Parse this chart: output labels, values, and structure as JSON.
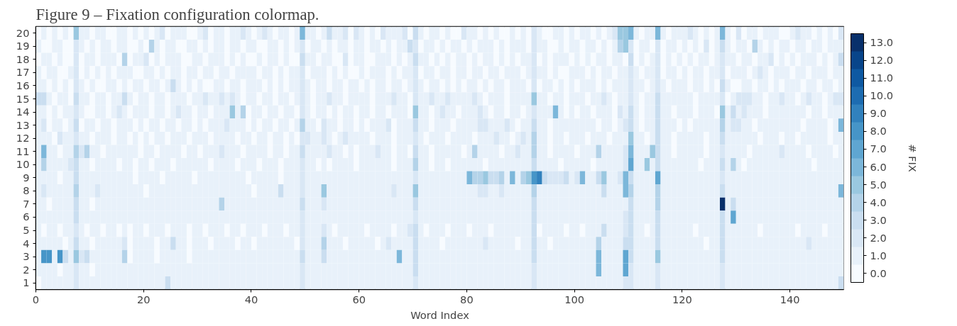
{
  "chart_data": {
    "type": "heatmap",
    "title": "Figure 9 – Fixation configuration colormap.",
    "xlabel": "Word Index",
    "clabel": "# FIX",
    "x": [
      0.5,
      1.5,
      2.5,
      3.5,
      4.5,
      5.5,
      6.5,
      7.5,
      8.5,
      9.5,
      10.5,
      11.5,
      12.5,
      13.5,
      14.5,
      15.5,
      16.5,
      17.5,
      18.5,
      19.5,
      20.5,
      21.5,
      22.5,
      23.5,
      24.5,
      25.5,
      26.5,
      27.5,
      28.5,
      29.5,
      30.5,
      31.5,
      32.5,
      33.5,
      34.5,
      35.5,
      36.5,
      37.5,
      38.5,
      39.5,
      40.5,
      41.5,
      42.5,
      43.5,
      44.5,
      45.5,
      46.5,
      47.5,
      48.5,
      49.5,
      50.5,
      51.5,
      52.5,
      53.5,
      54.5,
      55.5,
      56.5,
      57.5,
      58.5,
      59.5,
      60.5,
      61.5,
      62.5,
      63.5,
      64.5,
      65.5,
      66.5,
      67.5,
      68.5,
      69.5,
      70.5,
      71.5,
      72.5,
      73.5,
      74.5,
      75.5,
      76.5,
      77.5,
      78.5,
      79.5,
      80.5,
      81.5,
      82.5,
      83.5,
      84.5,
      85.5,
      86.5,
      87.5,
      88.5,
      89.5,
      90.5,
      91.5,
      92.5,
      93.5,
      94.5,
      95.5,
      96.5,
      97.5,
      98.5,
      99.5,
      100.5,
      101.5,
      102.5,
      103.5,
      104.5,
      105.5,
      106.5,
      107.5,
      108.5,
      109.5,
      110.5,
      111.5,
      112.5,
      113.5,
      114.5,
      115.5,
      116.5,
      117.5,
      118.5,
      119.5,
      120.5,
      121.5,
      122.5,
      123.5,
      124.5,
      125.5,
      126.5,
      127.5,
      128.5,
      129.5,
      130.5,
      131.5,
      132.5,
      133.5,
      134.5,
      135.5,
      136.5,
      137.5,
      138.5,
      139.5,
      140.5,
      141.5,
      142.5,
      143.5,
      144.5,
      145.5,
      146.5,
      147.5,
      148.5,
      149.5
    ],
    "y_categories": [
      "20",
      "19",
      "18",
      "17",
      "16",
      "15",
      "14",
      "13",
      "12",
      "11",
      "10",
      "9",
      "8",
      "7",
      "6",
      "5",
      "4",
      "3",
      "2",
      "1"
    ],
    "xlim": [
      0,
      150
    ],
    "xticks": [
      0,
      20,
      40,
      60,
      80,
      100,
      120,
      140
    ],
    "clim": [
      -0.5,
      13.5
    ],
    "cticks": [
      {
        "value": 0,
        "label": "0.0"
      },
      {
        "value": 1,
        "label": "1.0"
      },
      {
        "value": 2,
        "label": "2.0"
      },
      {
        "value": 3,
        "label": "3.0"
      },
      {
        "value": 4,
        "label": "4.0"
      },
      {
        "value": 5,
        "label": "5.0"
      },
      {
        "value": 6,
        "label": "6.0"
      },
      {
        "value": 7,
        "label": "7.0"
      },
      {
        "value": 8,
        "label": "8.0"
      },
      {
        "value": 9,
        "label": "9.0"
      },
      {
        "value": 10,
        "label": "10.0"
      },
      {
        "value": 11,
        "label": "11.0"
      },
      {
        "value": 12,
        "label": "12.0"
      },
      {
        "value": 13,
        "label": "13.0"
      }
    ],
    "cells": [
      [
        0,
        1,
        0,
        1,
        0,
        1,
        0,
        5,
        1,
        1,
        0,
        1,
        1,
        0,
        0,
        1,
        1,
        0,
        1,
        0,
        1,
        0,
        1,
        2,
        0,
        1,
        1,
        1,
        0,
        0,
        1,
        2,
        0,
        1,
        1,
        0,
        1,
        1,
        2,
        1,
        0,
        1,
        2,
        1,
        0,
        1,
        1,
        0,
        1,
        6,
        1,
        1,
        0,
        1,
        3,
        1,
        1,
        2,
        0,
        2,
        1,
        0,
        1,
        0,
        2,
        1,
        1,
        1,
        2,
        0,
        3,
        1,
        0,
        1,
        1,
        0,
        1,
        0,
        0,
        2,
        1,
        1,
        0,
        1,
        0,
        1,
        0,
        0,
        1,
        0,
        1,
        0,
        2,
        1,
        0,
        0,
        1,
        1,
        0,
        1,
        0,
        1,
        1,
        0,
        1,
        0,
        1,
        2,
        5,
        5,
        6,
        1,
        0,
        1,
        1,
        6,
        1,
        0,
        1,
        1,
        1,
        2,
        1,
        0,
        1,
        0,
        1,
        6,
        1,
        0,
        2,
        0,
        1,
        1,
        0,
        1,
        1,
        1,
        0,
        0,
        1,
        2,
        1,
        1,
        0,
        1,
        0,
        1,
        0,
        2
      ],
      [
        1,
        0,
        0,
        1,
        1,
        0,
        0,
        2,
        1,
        0,
        1,
        0,
        1,
        1,
        0,
        1,
        1,
        0,
        0,
        1,
        0,
        4,
        1,
        0,
        1,
        1,
        0,
        0,
        1,
        1,
        0,
        1,
        0,
        1,
        1,
        0,
        1,
        1,
        0,
        1,
        1,
        0,
        0,
        1,
        1,
        0,
        1,
        0,
        1,
        2,
        0,
        1,
        1,
        0,
        1,
        0,
        1,
        1,
        0,
        1,
        1,
        0,
        1,
        1,
        0,
        1,
        0,
        1,
        1,
        3,
        2,
        0,
        1,
        1,
        0,
        1,
        0,
        1,
        1,
        0,
        1,
        0,
        1,
        1,
        1,
        0,
        1,
        0,
        1,
        1,
        1,
        0,
        2,
        1,
        1,
        0,
        0,
        1,
        0,
        1,
        1,
        0,
        1,
        1,
        0,
        1,
        0,
        1,
        4,
        5,
        2,
        0,
        1,
        1,
        0,
        2,
        0,
        1,
        1,
        0,
        1,
        0,
        1,
        0,
        2,
        0,
        1,
        3,
        1,
        0,
        1,
        1,
        0,
        4,
        1,
        0,
        1,
        0,
        1,
        1,
        0,
        1,
        1,
        0,
        1,
        1,
        0,
        1,
        1,
        1
      ],
      [
        0,
        1,
        1,
        0,
        1,
        0,
        0,
        2,
        0,
        1,
        1,
        0,
        1,
        1,
        1,
        0,
        4,
        0,
        1,
        1,
        2,
        0,
        1,
        0,
        1,
        1,
        1,
        0,
        0,
        1,
        1,
        0,
        1,
        1,
        1,
        0,
        1,
        0,
        1,
        0,
        0,
        1,
        0,
        1,
        1,
        0,
        1,
        0,
        0,
        3,
        1,
        1,
        0,
        1,
        1,
        0,
        0,
        2,
        0,
        1,
        1,
        0,
        0,
        1,
        1,
        1,
        0,
        1,
        0,
        1,
        3,
        1,
        1,
        0,
        1,
        0,
        1,
        0,
        1,
        1,
        0,
        1,
        0,
        1,
        1,
        0,
        1,
        0,
        1,
        0,
        1,
        1,
        2,
        0,
        1,
        0,
        1,
        1,
        1,
        0,
        1,
        0,
        1,
        0,
        1,
        1,
        0,
        1,
        1,
        0,
        3,
        0,
        1,
        0,
        1,
        2,
        0,
        1,
        0,
        1,
        0,
        1,
        0,
        1,
        1,
        0,
        1,
        2,
        1,
        1,
        0,
        1,
        1,
        0,
        1,
        1,
        2,
        0,
        1,
        0,
        1,
        0,
        1,
        1,
        1,
        0,
        1,
        0,
        1,
        3
      ],
      [
        1,
        0,
        1,
        1,
        0,
        0,
        1,
        2,
        0,
        1,
        0,
        1,
        0,
        1,
        0,
        1,
        1,
        1,
        0,
        0,
        1,
        1,
        0,
        1,
        0,
        1,
        1,
        0,
        1,
        1,
        0,
        1,
        1,
        0,
        1,
        1,
        0,
        1,
        1,
        1,
        1,
        0,
        1,
        1,
        0,
        1,
        0,
        1,
        1,
        2,
        0,
        1,
        1,
        1,
        0,
        1,
        0,
        1,
        0,
        0,
        1,
        0,
        1,
        1,
        1,
        0,
        1,
        0,
        1,
        1,
        2,
        0,
        1,
        1,
        0,
        1,
        1,
        0,
        1,
        1,
        0,
        1,
        1,
        0,
        1,
        1,
        0,
        1,
        1,
        1,
        0,
        1,
        2,
        1,
        1,
        0,
        1,
        0,
        0,
        1,
        1,
        1,
        0,
        1,
        0,
        1,
        1,
        0,
        1,
        1,
        2,
        1,
        0,
        1,
        1,
        2,
        0,
        1,
        1,
        0,
        1,
        0,
        1,
        1,
        0,
        1,
        1,
        2,
        0,
        1,
        1,
        1,
        0,
        1,
        2,
        1,
        0,
        1,
        1,
        1,
        0,
        1,
        1,
        0,
        1,
        1,
        1,
        0,
        1,
        1
      ],
      [
        1,
        1,
        0,
        1,
        0,
        1,
        0,
        2,
        1,
        0,
        1,
        0,
        0,
        1,
        1,
        0,
        1,
        0,
        1,
        1,
        0,
        1,
        1,
        0,
        1,
        3,
        1,
        0,
        1,
        0,
        1,
        0,
        0,
        1,
        1,
        0,
        1,
        1,
        0,
        1,
        1,
        1,
        0,
        1,
        0,
        1,
        0,
        1,
        1,
        2,
        1,
        0,
        1,
        1,
        0,
        1,
        1,
        0,
        1,
        1,
        0,
        1,
        0,
        1,
        1,
        0,
        1,
        1,
        0,
        1,
        2,
        1,
        0,
        1,
        1,
        0,
        1,
        0,
        1,
        0,
        1,
        1,
        0,
        1,
        0,
        1,
        1,
        0,
        1,
        1,
        1,
        0,
        2,
        0,
        1,
        1,
        0,
        1,
        0,
        1,
        0,
        1,
        1,
        1,
        0,
        1,
        0,
        1,
        1,
        1,
        2,
        1,
        1,
        0,
        1,
        2,
        1,
        0,
        1,
        1,
        1,
        0,
        1,
        1,
        0,
        1,
        0,
        3,
        1,
        0,
        0,
        1,
        1,
        0,
        1,
        1,
        0,
        1,
        0,
        1,
        1,
        1,
        0,
        1,
        1,
        0,
        1,
        1,
        0,
        1
      ],
      [
        3,
        3,
        1,
        0,
        1,
        1,
        0,
        3,
        1,
        1,
        0,
        1,
        1,
        0,
        1,
        1,
        3,
        1,
        0,
        1,
        1,
        0,
        1,
        1,
        0,
        1,
        1,
        1,
        0,
        1,
        1,
        2,
        1,
        1,
        2,
        1,
        2,
        1,
        0,
        1,
        1,
        0,
        1,
        1,
        0,
        1,
        1,
        0,
        1,
        2,
        1,
        0,
        1,
        1,
        2,
        1,
        1,
        0,
        1,
        1,
        1,
        1,
        0,
        1,
        1,
        1,
        2,
        1,
        1,
        0,
        2,
        1,
        1,
        2,
        1,
        1,
        2,
        1,
        1,
        1,
        1,
        2,
        1,
        0,
        1,
        1,
        1,
        0,
        1,
        1,
        1,
        1,
        5,
        1,
        1,
        0,
        1,
        1,
        0,
        1,
        1,
        1,
        0,
        1,
        1,
        2,
        1,
        0,
        1,
        1,
        2,
        1,
        0,
        1,
        1,
        3,
        1,
        1,
        1,
        1,
        1,
        1,
        0,
        1,
        1,
        1,
        1,
        2,
        0,
        1,
        2,
        2,
        2,
        1,
        1,
        0,
        1,
        1,
        2,
        1,
        1,
        0,
        1,
        2,
        1,
        1,
        0,
        1,
        2,
        2
      ],
      [
        1,
        1,
        0,
        1,
        0,
        1,
        1,
        2,
        1,
        0,
        0,
        1,
        1,
        0,
        1,
        2,
        1,
        0,
        1,
        1,
        1,
        0,
        1,
        1,
        0,
        1,
        2,
        1,
        1,
        0,
        1,
        1,
        0,
        1,
        1,
        1,
        5,
        1,
        4,
        0,
        1,
        1,
        0,
        1,
        1,
        0,
        1,
        1,
        0,
        2,
        1,
        0,
        1,
        1,
        0,
        1,
        0,
        1,
        1,
        0,
        1,
        1,
        0,
        1,
        1,
        0,
        1,
        1,
        1,
        0,
        5,
        1,
        1,
        0,
        1,
        2,
        1,
        1,
        0,
        1,
        1,
        1,
        2,
        1,
        0,
        1,
        1,
        0,
        1,
        1,
        0,
        1,
        2,
        1,
        1,
        1,
        6,
        1,
        0,
        1,
        0,
        1,
        1,
        0,
        1,
        1,
        1,
        0,
        2,
        1,
        3,
        1,
        0,
        1,
        1,
        3,
        1,
        1,
        0,
        1,
        1,
        1,
        0,
        1,
        1,
        1,
        0,
        5,
        1,
        3,
        1,
        2,
        1,
        1,
        1,
        0,
        1,
        1,
        1,
        1,
        1,
        1,
        1,
        0,
        1,
        1,
        0,
        1,
        1,
        1
      ],
      [
        1,
        2,
        0,
        1,
        1,
        0,
        1,
        3,
        0,
        1,
        1,
        0,
        1,
        1,
        0,
        1,
        1,
        1,
        0,
        1,
        0,
        1,
        1,
        0,
        1,
        1,
        0,
        1,
        1,
        0,
        1,
        0,
        1,
        1,
        1,
        2,
        1,
        1,
        1,
        0,
        1,
        0,
        1,
        1,
        0,
        1,
        1,
        0,
        1,
        4,
        1,
        1,
        0,
        2,
        1,
        1,
        0,
        1,
        1,
        0,
        1,
        0,
        1,
        1,
        1,
        2,
        0,
        1,
        1,
        1,
        3,
        1,
        1,
        0,
        1,
        1,
        1,
        0,
        1,
        1,
        1,
        1,
        2,
        2,
        1,
        1,
        1,
        2,
        1,
        0,
        1,
        1,
        3,
        1,
        1,
        0,
        1,
        1,
        1,
        1,
        1,
        1,
        1,
        1,
        0,
        1,
        1,
        0,
        1,
        2,
        3,
        1,
        0,
        1,
        1,
        3,
        1,
        1,
        1,
        0,
        1,
        0,
        1,
        1,
        1,
        1,
        1,
        4,
        1,
        2,
        2,
        1,
        1,
        0,
        1,
        1,
        1,
        1,
        1,
        1,
        1,
        1,
        0,
        1,
        1,
        1,
        1,
        0,
        1,
        6
      ],
      [
        1,
        1,
        1,
        0,
        2,
        1,
        1,
        2,
        1,
        1,
        0,
        1,
        1,
        1,
        0,
        1,
        1,
        0,
        1,
        0,
        1,
        0,
        1,
        1,
        0,
        1,
        1,
        1,
        0,
        1,
        1,
        1,
        0,
        1,
        1,
        1,
        1,
        0,
        1,
        1,
        0,
        1,
        1,
        0,
        1,
        1,
        0,
        1,
        0,
        2,
        2,
        1,
        1,
        2,
        1,
        0,
        1,
        2,
        1,
        1,
        1,
        1,
        0,
        1,
        1,
        1,
        0,
        1,
        1,
        1,
        2,
        1,
        0,
        1,
        1,
        1,
        0,
        1,
        1,
        1,
        1,
        0,
        1,
        1,
        1,
        2,
        1,
        1,
        0,
        1,
        2,
        1,
        4,
        1,
        1,
        0,
        1,
        1,
        0,
        1,
        1,
        1,
        0,
        1,
        1,
        1,
        0,
        1,
        1,
        1,
        5,
        1,
        1,
        0,
        1,
        3,
        1,
        1,
        0,
        1,
        1,
        1,
        1,
        1,
        0,
        1,
        1,
        3,
        1,
        1,
        1,
        1,
        1,
        1,
        0,
        1,
        1,
        1,
        0,
        1,
        1,
        0,
        1,
        1,
        1,
        1,
        1,
        0,
        1,
        1
      ],
      [
        1,
        6,
        1,
        1,
        0,
        1,
        1,
        4,
        2,
        4,
        1,
        1,
        0,
        1,
        1,
        1,
        1,
        1,
        1,
        0,
        1,
        1,
        0,
        1,
        1,
        1,
        1,
        0,
        1,
        1,
        0,
        1,
        1,
        1,
        2,
        1,
        1,
        1,
        0,
        1,
        1,
        1,
        1,
        0,
        1,
        1,
        0,
        1,
        1,
        3,
        1,
        1,
        1,
        1,
        2,
        1,
        1,
        0,
        1,
        0,
        1,
        1,
        1,
        2,
        1,
        1,
        0,
        1,
        1,
        0,
        3,
        1,
        1,
        0,
        1,
        1,
        1,
        1,
        1,
        0,
        1,
        4,
        1,
        1,
        1,
        1,
        0,
        1,
        1,
        2,
        1,
        1,
        4,
        1,
        1,
        0,
        1,
        1,
        1,
        1,
        0,
        1,
        1,
        1,
        4,
        1,
        1,
        1,
        1,
        2,
        6,
        1,
        1,
        1,
        5,
        3,
        1,
        1,
        0,
        1,
        1,
        1,
        1,
        1,
        0,
        1,
        1,
        2,
        1,
        1,
        1,
        1,
        0,
        1,
        1,
        1,
        1,
        1,
        2,
        1,
        1,
        1,
        1,
        0,
        1,
        1,
        1,
        1,
        0,
        1
      ],
      [
        1,
        4,
        1,
        1,
        1,
        1,
        2,
        3,
        1,
        1,
        0,
        1,
        1,
        1,
        1,
        0,
        1,
        1,
        0,
        1,
        1,
        0,
        1,
        1,
        1,
        0,
        1,
        1,
        1,
        1,
        1,
        1,
        0,
        1,
        1,
        1,
        1,
        0,
        1,
        1,
        1,
        0,
        1,
        1,
        1,
        0,
        1,
        1,
        1,
        2,
        1,
        1,
        0,
        1,
        0,
        1,
        1,
        1,
        1,
        0,
        1,
        1,
        1,
        1,
        1,
        1,
        0,
        1,
        1,
        1,
        4,
        1,
        1,
        0,
        1,
        1,
        0,
        1,
        1,
        1,
        1,
        1,
        1,
        0,
        1,
        1,
        1,
        1,
        1,
        1,
        1,
        1,
        3,
        1,
        1,
        1,
        1,
        0,
        1,
        1,
        1,
        1,
        1,
        0,
        1,
        1,
        1,
        1,
        1,
        2,
        7,
        1,
        1,
        5,
        1,
        3,
        1,
        1,
        1,
        1,
        1,
        1,
        1,
        0,
        1,
        1,
        1,
        3,
        1,
        4,
        1,
        0,
        1,
        1,
        1,
        1,
        1,
        1,
        1,
        1,
        1,
        1,
        1,
        1,
        0,
        1,
        1,
        1,
        1,
        1
      ],
      [
        1,
        1,
        1,
        1,
        0,
        1,
        1,
        3,
        1,
        1,
        1,
        1,
        1,
        1,
        1,
        1,
        1,
        1,
        0,
        1,
        1,
        1,
        1,
        0,
        1,
        1,
        1,
        1,
        1,
        0,
        1,
        1,
        1,
        1,
        1,
        1,
        1,
        1,
        1,
        0,
        1,
        1,
        1,
        1,
        1,
        0,
        1,
        1,
        1,
        2,
        1,
        1,
        1,
        1,
        1,
        1,
        1,
        1,
        1,
        1,
        1,
        1,
        1,
        1,
        1,
        1,
        1,
        1,
        1,
        1,
        2,
        1,
        1,
        1,
        1,
        1,
        1,
        1,
        1,
        1,
        6,
        4,
        4,
        5,
        3,
        3,
        4,
        1,
        6,
        1,
        4,
        5,
        8,
        9,
        3,
        2,
        2,
        2,
        3,
        1,
        2,
        6,
        1,
        1,
        3,
        5,
        1,
        1,
        2,
        6,
        3,
        1,
        1,
        1,
        1,
        7,
        1,
        1,
        1,
        1,
        1,
        1,
        1,
        1,
        1,
        1,
        1,
        2,
        1,
        1,
        1,
        1,
        1,
        1,
        1,
        1,
        1,
        1,
        1,
        1,
        1,
        1,
        1,
        1,
        1,
        1,
        1,
        1,
        1,
        1
      ],
      [
        1,
        2,
        1,
        1,
        1,
        1,
        1,
        4,
        1,
        1,
        1,
        2,
        1,
        1,
        1,
        1,
        1,
        1,
        1,
        1,
        0,
        1,
        1,
        1,
        1,
        1,
        1,
        1,
        1,
        1,
        1,
        1,
        1,
        1,
        1,
        1,
        1,
        1,
        1,
        1,
        0,
        1,
        1,
        1,
        1,
        3,
        1,
        1,
        1,
        2,
        1,
        1,
        1,
        5,
        1,
        1,
        1,
        1,
        1,
        1,
        1,
        1,
        1,
        1,
        1,
        1,
        2,
        1,
        1,
        1,
        5,
        1,
        1,
        1,
        1,
        1,
        1,
        1,
        1,
        1,
        1,
        1,
        2,
        2,
        1,
        1,
        2,
        1,
        1,
        1,
        1,
        1,
        4,
        1,
        1,
        1,
        1,
        1,
        1,
        1,
        1,
        1,
        1,
        1,
        1,
        3,
        1,
        1,
        1,
        6,
        4,
        1,
        1,
        1,
        1,
        4,
        1,
        1,
        1,
        1,
        1,
        1,
        1,
        1,
        1,
        1,
        1,
        3,
        1,
        1,
        1,
        1,
        1,
        1,
        1,
        1,
        1,
        1,
        1,
        1,
        1,
        1,
        1,
        1,
        1,
        1,
        1,
        1,
        1,
        6
      ],
      [
        1,
        1,
        0,
        1,
        1,
        1,
        1,
        3,
        1,
        1,
        0,
        1,
        1,
        1,
        1,
        1,
        1,
        1,
        1,
        1,
        1,
        1,
        1,
        1,
        1,
        1,
        1,
        1,
        1,
        1,
        1,
        1,
        1,
        1,
        4,
        1,
        1,
        1,
        1,
        1,
        1,
        1,
        1,
        1,
        1,
        1,
        1,
        1,
        1,
        3,
        1,
        1,
        1,
        2,
        1,
        1,
        1,
        1,
        1,
        1,
        1,
        1,
        1,
        1,
        1,
        1,
        1,
        1,
        1,
        1,
        3,
        1,
        1,
        1,
        1,
        1,
        1,
        1,
        1,
        1,
        1,
        1,
        1,
        1,
        1,
        1,
        1,
        1,
        1,
        1,
        1,
        1,
        3,
        1,
        1,
        1,
        1,
        1,
        1,
        1,
        1,
        1,
        1,
        1,
        1,
        1,
        1,
        1,
        1,
        1,
        3,
        1,
        1,
        1,
        1,
        4,
        1,
        1,
        1,
        1,
        1,
        1,
        1,
        1,
        1,
        1,
        1,
        13,
        1,
        3,
        1,
        1,
        1,
        1,
        1,
        1,
        1,
        1,
        1,
        1,
        1,
        1,
        1,
        1,
        1,
        1,
        1,
        1,
        1,
        1
      ],
      [
        1,
        1,
        1,
        1,
        1,
        1,
        1,
        3,
        1,
        1,
        1,
        1,
        1,
        1,
        1,
        1,
        1,
        1,
        1,
        1,
        1,
        1,
        1,
        1,
        1,
        1,
        1,
        1,
        1,
        1,
        1,
        1,
        1,
        1,
        1,
        1,
        1,
        1,
        1,
        1,
        1,
        1,
        1,
        1,
        1,
        1,
        1,
        1,
        1,
        2,
        1,
        1,
        1,
        1,
        1,
        1,
        1,
        1,
        1,
        1,
        1,
        1,
        1,
        1,
        1,
        1,
        1,
        1,
        1,
        1,
        2,
        1,
        1,
        1,
        1,
        1,
        1,
        1,
        1,
        1,
        1,
        1,
        1,
        1,
        1,
        1,
        1,
        1,
        1,
        1,
        1,
        1,
        3,
        1,
        1,
        1,
        1,
        1,
        1,
        1,
        1,
        1,
        1,
        1,
        1,
        1,
        1,
        1,
        1,
        2,
        3,
        1,
        1,
        1,
        1,
        3,
        1,
        1,
        1,
        1,
        1,
        1,
        1,
        1,
        1,
        1,
        1,
        3,
        1,
        7,
        1,
        1,
        1,
        1,
        1,
        1,
        1,
        1,
        1,
        1,
        1,
        1,
        1,
        1,
        1,
        1,
        1,
        1,
        1,
        1
      ],
      [
        1,
        0,
        1,
        1,
        0,
        1,
        1,
        2,
        1,
        0,
        1,
        1,
        0,
        1,
        1,
        0,
        1,
        0,
        1,
        1,
        0,
        1,
        1,
        1,
        0,
        1,
        1,
        1,
        0,
        1,
        1,
        0,
        1,
        1,
        1,
        0,
        1,
        1,
        0,
        1,
        1,
        1,
        0,
        1,
        1,
        1,
        0,
        1,
        1,
        2,
        1,
        1,
        1,
        2,
        1,
        0,
        1,
        1,
        1,
        1,
        1,
        0,
        1,
        1,
        1,
        1,
        0,
        1,
        1,
        2,
        3,
        1,
        0,
        1,
        1,
        1,
        0,
        1,
        1,
        1,
        0,
        1,
        1,
        1,
        0,
        1,
        1,
        1,
        1,
        1,
        1,
        1,
        3,
        0,
        1,
        1,
        1,
        1,
        0,
        1,
        1,
        0,
        1,
        1,
        1,
        3,
        1,
        1,
        1,
        2,
        3,
        1,
        1,
        0,
        1,
        3,
        1,
        1,
        1,
        1,
        1,
        1,
        0,
        1,
        1,
        1,
        1,
        3,
        1,
        1,
        1,
        1,
        1,
        1,
        0,
        1,
        1,
        1,
        1,
        1,
        1,
        0,
        1,
        1,
        1,
        1,
        0,
        1,
        1,
        1
      ],
      [
        1,
        1,
        1,
        1,
        1,
        0,
        1,
        3,
        1,
        1,
        0,
        1,
        1,
        1,
        1,
        1,
        2,
        0,
        1,
        1,
        1,
        1,
        0,
        1,
        1,
        3,
        1,
        1,
        0,
        1,
        1,
        1,
        0,
        1,
        1,
        1,
        1,
        0,
        1,
        1,
        0,
        1,
        1,
        1,
        1,
        1,
        1,
        1,
        0,
        2,
        1,
        1,
        1,
        4,
        1,
        1,
        1,
        0,
        1,
        1,
        1,
        1,
        1,
        0,
        1,
        2,
        1,
        1,
        1,
        1,
        3,
        1,
        1,
        1,
        1,
        0,
        1,
        1,
        1,
        1,
        1,
        1,
        1,
        2,
        1,
        1,
        1,
        1,
        1,
        0,
        1,
        1,
        3,
        1,
        1,
        0,
        1,
        1,
        1,
        1,
        1,
        1,
        1,
        1,
        4,
        1,
        1,
        1,
        1,
        3,
        3,
        1,
        1,
        1,
        1,
        3,
        1,
        1,
        1,
        1,
        1,
        1,
        1,
        1,
        0,
        1,
        1,
        3,
        1,
        1,
        1,
        1,
        1,
        1,
        1,
        1,
        1,
        1,
        1,
        1,
        1,
        1,
        1,
        2,
        1,
        1,
        1,
        1,
        1,
        1
      ],
      [
        1,
        8,
        8,
        1,
        8,
        3,
        1,
        5,
        2,
        3,
        1,
        1,
        1,
        1,
        1,
        1,
        4,
        0,
        1,
        1,
        1,
        1,
        0,
        1,
        1,
        1,
        1,
        1,
        0,
        1,
        1,
        1,
        1,
        1,
        1,
        1,
        1,
        1,
        1,
        1,
        1,
        1,
        1,
        1,
        1,
        1,
        1,
        1,
        1,
        3,
        1,
        1,
        1,
        3,
        1,
        1,
        1,
        1,
        1,
        1,
        1,
        1,
        1,
        1,
        1,
        1,
        1,
        6,
        1,
        1,
        3,
        1,
        1,
        1,
        1,
        1,
        1,
        1,
        1,
        1,
        1,
        1,
        1,
        1,
        1,
        1,
        1,
        1,
        1,
        1,
        1,
        1,
        3,
        1,
        1,
        1,
        1,
        1,
        1,
        1,
        1,
        1,
        1,
        1,
        6,
        1,
        1,
        1,
        1,
        7,
        3,
        1,
        1,
        1,
        1,
        5,
        1,
        1,
        1,
        1,
        1,
        1,
        1,
        1,
        1,
        1,
        1,
        3,
        1,
        1,
        1,
        1,
        1,
        1,
        1,
        1,
        1,
        1,
        1,
        1,
        1,
        1,
        1,
        1,
        1,
        1,
        1,
        1,
        1,
        1
      ],
      [
        1,
        1,
        1,
        1,
        0,
        1,
        1,
        2,
        1,
        1,
        0,
        1,
        1,
        1,
        1,
        1,
        1,
        1,
        1,
        1,
        1,
        1,
        1,
        1,
        1,
        1,
        1,
        1,
        1,
        1,
        1,
        1,
        1,
        1,
        1,
        1,
        1,
        1,
        1,
        1,
        1,
        1,
        1,
        1,
        1,
        1,
        1,
        1,
        1,
        2,
        1,
        1,
        1,
        1,
        1,
        1,
        1,
        1,
        1,
        1,
        1,
        1,
        1,
        1,
        1,
        1,
        1,
        1,
        1,
        1,
        3,
        1,
        1,
        1,
        1,
        1,
        1,
        1,
        1,
        1,
        1,
        1,
        1,
        1,
        1,
        1,
        1,
        1,
        1,
        1,
        1,
        1,
        2,
        1,
        1,
        1,
        1,
        1,
        1,
        1,
        1,
        1,
        1,
        1,
        6,
        1,
        1,
        1,
        1,
        7,
        2,
        1,
        1,
        1,
        1,
        2,
        1,
        1,
        1,
        1,
        1,
        1,
        1,
        1,
        1,
        1,
        1,
        2,
        1,
        1,
        1,
        1,
        1,
        1,
        1,
        1,
        1,
        1,
        1,
        1,
        1,
        1,
        1,
        1,
        1,
        1,
        1,
        1,
        1,
        1
      ],
      [
        0,
        1,
        1,
        1,
        1,
        1,
        1,
        2,
        1,
        1,
        1,
        1,
        1,
        1,
        1,
        1,
        1,
        1,
        1,
        1,
        1,
        1,
        1,
        1,
        3,
        1,
        1,
        1,
        1,
        1,
        1,
        1,
        1,
        1,
        1,
        1,
        1,
        1,
        1,
        1,
        1,
        1,
        1,
        1,
        1,
        1,
        1,
        1,
        1,
        2,
        1,
        1,
        1,
        1,
        1,
        1,
        1,
        1,
        1,
        1,
        1,
        1,
        1,
        1,
        1,
        1,
        1,
        1,
        1,
        1,
        2,
        1,
        1,
        1,
        1,
        1,
        1,
        1,
        1,
        1,
        1,
        1,
        1,
        1,
        1,
        1,
        1,
        1,
        1,
        1,
        1,
        1,
        2,
        1,
        1,
        1,
        1,
        1,
        1,
        1,
        1,
        1,
        1,
        1,
        1,
        1,
        1,
        1,
        1,
        2,
        2,
        1,
        1,
        1,
        1,
        2,
        1,
        1,
        1,
        1,
        1,
        1,
        1,
        1,
        1,
        1,
        1,
        2,
        1,
        1,
        1,
        1,
        1,
        1,
        1,
        1,
        1,
        1,
        1,
        1,
        1,
        1,
        1,
        1,
        1,
        1,
        1,
        1,
        1,
        3
      ]
    ]
  }
}
